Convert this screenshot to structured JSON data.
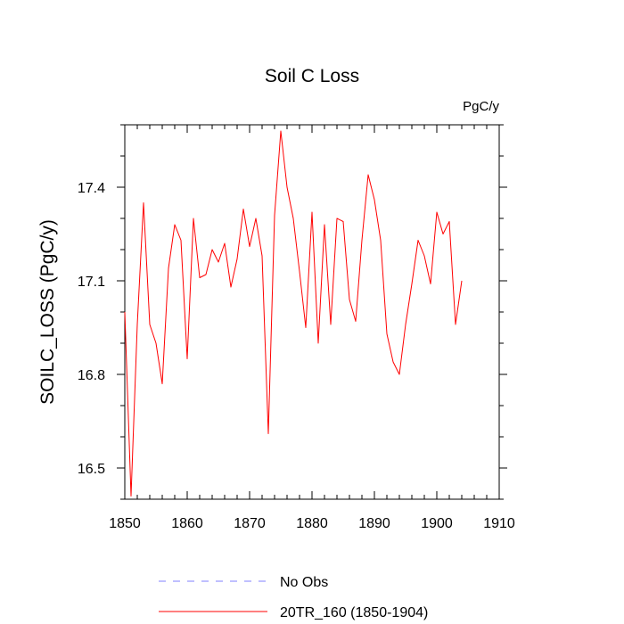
{
  "chart_data": {
    "type": "line",
    "title": "Soil C Loss",
    "units_label": "PgC/y",
    "xlabel": "",
    "ylabel": "SOILC_LOSS  (PgC/y)",
    "xlim": [
      1850,
      1910
    ],
    "ylim": [
      16.4,
      17.6
    ],
    "x_ticks": [
      1850,
      1860,
      1870,
      1880,
      1890,
      1900,
      1910
    ],
    "x_tick_labels": [
      "1850",
      "1860",
      "1870",
      "1880",
      "1890",
      "1900",
      "1910"
    ],
    "y_ticks": [
      16.5,
      16.8,
      17.1,
      17.4
    ],
    "y_tick_labels": [
      "16.5",
      "16.8",
      "17.1",
      "17.4"
    ],
    "grid": false,
    "legend_position": "bottom",
    "legend": [
      {
        "name": "No Obs",
        "color": "#8080ff",
        "style": "dashed"
      },
      {
        "name": "20TR_160 (1850-1904)",
        "color": "#ff0000",
        "style": "solid"
      }
    ],
    "series": [
      {
        "name": "20TR_160 (1850-1904)",
        "color": "#ff0000",
        "x": [
          1850,
          1851,
          1852,
          1853,
          1854,
          1855,
          1856,
          1857,
          1858,
          1859,
          1860,
          1861,
          1862,
          1863,
          1864,
          1865,
          1866,
          1867,
          1868,
          1869,
          1870,
          1871,
          1872,
          1873,
          1874,
          1875,
          1876,
          1877,
          1878,
          1879,
          1880,
          1881,
          1882,
          1883,
          1884,
          1885,
          1886,
          1887,
          1888,
          1889,
          1890,
          1891,
          1892,
          1893,
          1894,
          1895,
          1896,
          1897,
          1898,
          1899,
          1900,
          1901,
          1902,
          1903,
          1904
        ],
        "values": [
          17.0,
          16.41,
          16.96,
          17.35,
          16.96,
          16.9,
          16.77,
          17.14,
          17.28,
          17.23,
          16.85,
          17.3,
          17.11,
          17.12,
          17.2,
          17.16,
          17.22,
          17.08,
          17.17,
          17.33,
          17.21,
          17.3,
          17.18,
          16.61,
          17.31,
          17.58,
          17.4,
          17.3,
          17.13,
          16.95,
          17.32,
          16.9,
          17.28,
          16.96,
          17.3,
          17.29,
          17.04,
          16.97,
          17.23,
          17.44,
          17.36,
          17.23,
          16.93,
          16.84,
          16.8,
          16.96,
          17.09,
          17.23,
          17.18,
          17.09,
          17.32,
          17.25,
          17.29,
          16.96,
          17.1
        ]
      }
    ]
  }
}
